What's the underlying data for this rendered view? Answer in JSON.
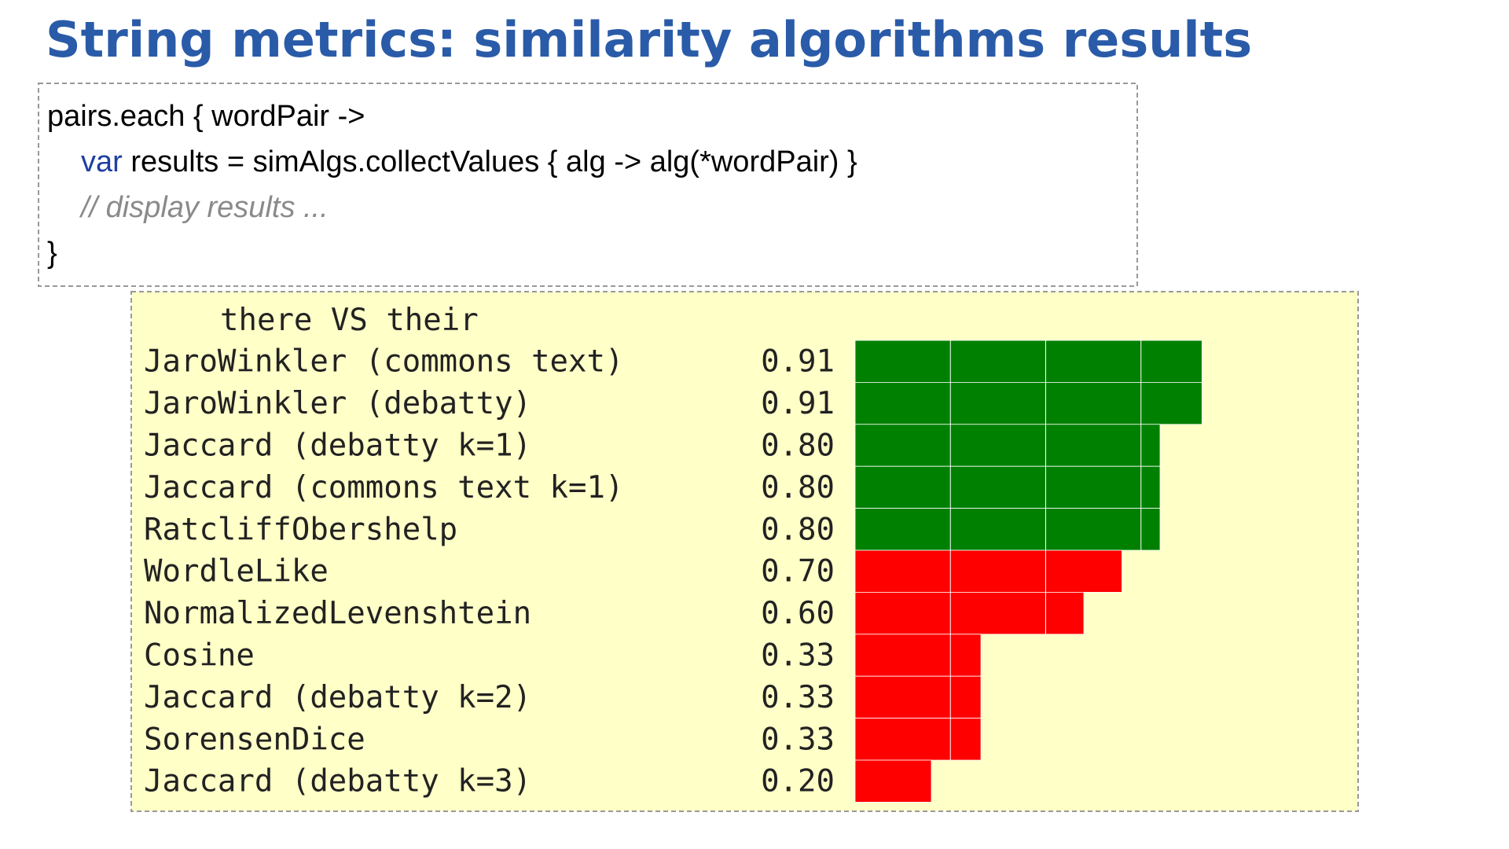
{
  "title": "String metrics: similarity algorithms results",
  "code": {
    "lines": [
      {
        "text": "pairs.each { wordPair ->"
      },
      {
        "keyword": "var",
        "text": "results = simAlgs.collectValues { alg -> alg(*wordPair) }"
      },
      {
        "comment": "// display results ..."
      },
      {
        "text": "}"
      }
    ]
  },
  "results": {
    "heading": "there VS their",
    "rows": [
      {
        "name": "JaroWinkler (commons text)",
        "value": 0.91,
        "value_label": "0.91",
        "color": "#008000"
      },
      {
        "name": "JaroWinkler (debatty)",
        "value": 0.91,
        "value_label": "0.91",
        "color": "#008000"
      },
      {
        "name": "Jaccard (debatty k=1)",
        "value": 0.8,
        "value_label": "0.80",
        "color": "#008000"
      },
      {
        "name": "Jaccard (commons text k=1)",
        "value": 0.8,
        "value_label": "0.80",
        "color": "#008000"
      },
      {
        "name": "RatcliffObershelp",
        "value": 0.8,
        "value_label": "0.80",
        "color": "#008000"
      },
      {
        "name": "WordleLike",
        "value": 0.7,
        "value_label": "0.70",
        "color": "#ff0000"
      },
      {
        "name": "NormalizedLevenshtein",
        "value": 0.6,
        "value_label": "0.60",
        "color": "#ff0000"
      },
      {
        "name": "Cosine",
        "value": 0.33,
        "value_label": "0.33",
        "color": "#ff0000"
      },
      {
        "name": "Jaccard (debatty k=2)",
        "value": 0.33,
        "value_label": "0.33",
        "color": "#ff0000"
      },
      {
        "name": "SorensenDice",
        "value": 0.33,
        "value_label": "0.33",
        "color": "#ff0000"
      },
      {
        "name": "Jaccard (debatty k=3)",
        "value": 0.2,
        "value_label": "0.20",
        "color": "#ff0000"
      }
    ]
  }
}
